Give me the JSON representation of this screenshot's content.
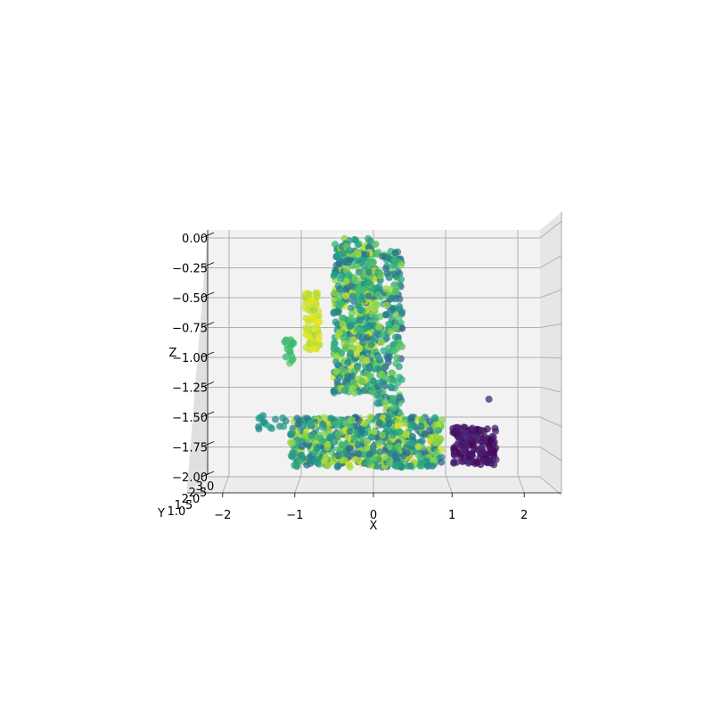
{
  "chart_data": {
    "type": "scatter",
    "projection": "3d",
    "title": "",
    "xlabel": "X",
    "ylabel": "Y",
    "zlabel": "Z",
    "xlim": [
      -2.5,
      2.6
    ],
    "zlim": [
      -2.0,
      0.1
    ],
    "x_ticks": [
      "−2",
      "−1",
      "0",
      "1",
      "2"
    ],
    "x_tick_values": [
      -2,
      -1,
      0,
      1,
      2
    ],
    "z_ticks": [
      "0.00",
      "−0.25",
      "−0.50",
      "−0.75",
      "−1.00",
      "−1.25",
      "−1.50",
      "−1.75",
      "−2.00"
    ],
    "z_tick_values": [
      0.0,
      -0.25,
      -0.5,
      -0.75,
      -1.0,
      -1.25,
      -1.5,
      -1.75,
      -2.0
    ],
    "y_ticks": [
      "1.0",
      "1.5",
      "2.0",
      "2.5",
      "3.0"
    ],
    "colormap": "viridis",
    "grid": true,
    "clusters": [
      {
        "name": "upper-column",
        "x": [
          -0.55,
          0.05
        ],
        "z": [
          -1.3,
          0.0
        ],
        "c": [
          0.35,
          0.95
        ],
        "n": 520
      },
      {
        "name": "column-right-strip",
        "x": [
          0.05,
          0.4
        ],
        "z": [
          -1.5,
          -0.1
        ],
        "c": [
          0.3,
          0.85
        ],
        "n": 220
      },
      {
        "name": "left-yellow-arm",
        "x": [
          -0.95,
          -0.75
        ],
        "z": [
          -0.95,
          -0.45
        ],
        "c": [
          0.85,
          0.98
        ],
        "n": 70
      },
      {
        "name": "left-green-dots",
        "x": [
          -1.25,
          -1.1
        ],
        "z": [
          -1.05,
          -0.85
        ],
        "c": [
          0.65,
          0.75
        ],
        "n": 18
      },
      {
        "name": "base-block",
        "x": [
          -1.15,
          0.95
        ],
        "z": [
          -1.92,
          -1.5
        ],
        "c": [
          0.3,
          0.95
        ],
        "n": 620
      },
      {
        "name": "base-left-tail",
        "x": [
          -1.6,
          -1.2
        ],
        "z": [
          -1.6,
          -1.48
        ],
        "c": [
          0.45,
          0.6
        ],
        "n": 15
      },
      {
        "name": "right-purple-cluster",
        "x": [
          1.1,
          1.7
        ],
        "z": [
          -1.9,
          -1.58
        ],
        "c": [
          0.0,
          0.12
        ],
        "n": 150
      },
      {
        "name": "right-purple-outlier",
        "x": [
          1.6,
          1.6
        ],
        "z": [
          -1.35,
          -1.35
        ],
        "c": [
          0.1,
          0.1
        ],
        "n": 1
      }
    ]
  }
}
